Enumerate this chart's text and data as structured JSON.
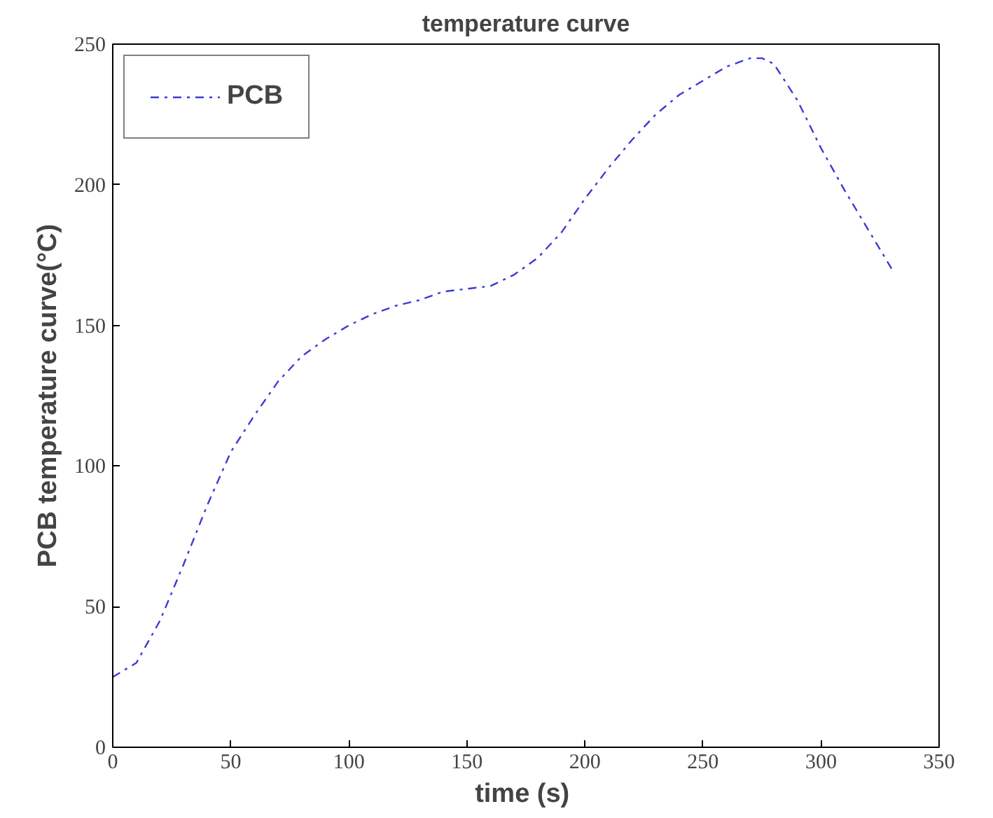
{
  "chart_data": {
    "type": "line",
    "title": "temperature curve",
    "xlabel": "time  (s)",
    "ylabel": "PCB temperature curve(°C)",
    "x": [
      0,
      10,
      20,
      30,
      40,
      50,
      60,
      70,
      80,
      90,
      100,
      110,
      120,
      130,
      140,
      150,
      160,
      170,
      180,
      190,
      200,
      210,
      220,
      230,
      240,
      250,
      260,
      270,
      275,
      280,
      290,
      300,
      310,
      320,
      330
    ],
    "series": [
      {
        "name": "PCB",
        "color": "#3b3bd6",
        "values": [
          25,
          30,
          45,
          65,
          86,
          105,
          118,
          130,
          139,
          145,
          150,
          154,
          157,
          159,
          162,
          163,
          164,
          168,
          174,
          183,
          195,
          206,
          216,
          225,
          232,
          237,
          242,
          245,
          245,
          243,
          230,
          213,
          198,
          184,
          170
        ]
      }
    ],
    "xlim": [
      0,
      350
    ],
    "ylim": [
      0,
      250
    ],
    "xticks": [
      0,
      50,
      100,
      150,
      200,
      250,
      300,
      350
    ],
    "yticks": [
      0,
      50,
      100,
      150,
      200,
      250
    ],
    "grid": false,
    "legend": "top left",
    "marker": "none",
    "line_style": "dashdot"
  }
}
